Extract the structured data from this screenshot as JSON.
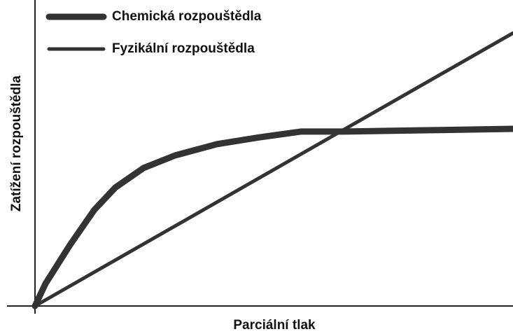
{
  "chart_data": {
    "type": "line",
    "x_label": "Parciální tlak",
    "y_label": "Zatížení rozpouštědla",
    "xlim": [
      0,
      100
    ],
    "ylim": [
      0,
      100
    ],
    "legend": "top-left",
    "series": [
      {
        "name": "Chemická rozpouštědla",
        "color": "#333333",
        "width": 9,
        "x": [
          0,
          2.2,
          7.3,
          12.4,
          16.8,
          22.7,
          29.3,
          38.1,
          46.9,
          55.6,
          64.4,
          80.5,
          100
        ],
        "values": [
          0,
          7.3,
          19.9,
          31.4,
          38.7,
          45.1,
          49.2,
          52.9,
          55.1,
          57.0,
          57.0,
          57.4,
          57.9
        ]
      },
      {
        "name": "Fyzikální rozpouštědla",
        "color": "#333333",
        "width": 5,
        "x": [
          0,
          100
        ],
        "values": [
          0,
          89.2
        ]
      }
    ]
  }
}
